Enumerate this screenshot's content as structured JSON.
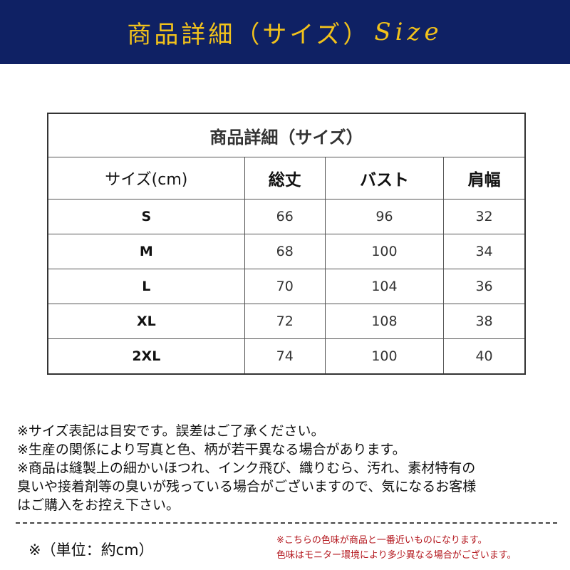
{
  "banner": {
    "title": "商品詳細（サイズ）",
    "size_word": "Size"
  },
  "colors": {
    "banner_bg": "#0f2164",
    "banner_text": "#f2c21b",
    "note_red": "#b3141b"
  },
  "table": {
    "title": "商品詳細（サイズ）",
    "headers": [
      "サイズ(cm)",
      "総丈",
      "バスト",
      "肩幅"
    ],
    "rows": [
      [
        "S",
        "66",
        "96",
        "32"
      ],
      [
        "M",
        "68",
        "100",
        "34"
      ],
      [
        "L",
        "70",
        "104",
        "36"
      ],
      [
        "XL",
        "72",
        "108",
        "38"
      ],
      [
        "2XL",
        "74",
        "100",
        "40"
      ]
    ]
  },
  "notes": [
    "※サイズ表記は目安です。誤差はご了承ください。",
    "※生産の関係により写真と色、柄が若干異なる場合があります。",
    "※商品は縫製上の細かいほつれ、インク飛び、織りむら、汚れ、素材特有の",
    "臭いや接着剤等の臭いが残っている場合がございますので、気になるお客様",
    "はご購入をお控え下さい。"
  ],
  "unit": "※（単位：約cm）",
  "color_notes": [
    "※こちらの色味が商品と一番近いものになります。",
    "色味はモニター環境により多少異なる場合がございます。"
  ]
}
